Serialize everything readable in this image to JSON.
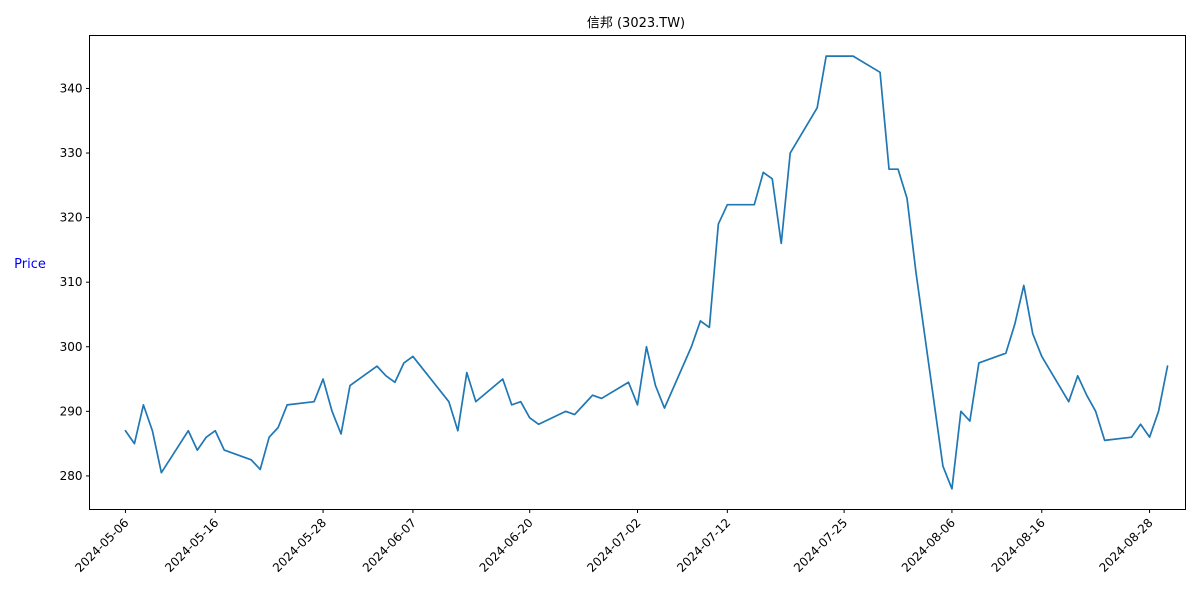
{
  "chart_data": {
    "type": "line",
    "title": "信邦 (3023.TW)",
    "xlabel": "",
    "ylabel": "Price",
    "ylabel_color": "#0000ff",
    "line_color": "#1f77b4",
    "grid": false,
    "legend": "none",
    "xlim": [
      "2024-05-02",
      "2024-09-01"
    ],
    "ylim": [
      274.8,
      348.2
    ],
    "x_ticks": [
      "2024-05-06",
      "2024-05-16",
      "2024-05-28",
      "2024-06-07",
      "2024-06-20",
      "2024-07-02",
      "2024-07-12",
      "2024-07-25",
      "2024-08-06",
      "2024-08-16",
      "2024-08-28"
    ],
    "y_ticks": [
      280,
      290,
      300,
      310,
      320,
      330,
      340
    ],
    "series": [
      {
        "x": [
          "2024-05-06",
          "2024-05-07",
          "2024-05-08",
          "2024-05-09",
          "2024-05-10",
          "2024-05-13",
          "2024-05-14",
          "2024-05-15",
          "2024-05-16",
          "2024-05-17",
          "2024-05-20",
          "2024-05-21",
          "2024-05-22",
          "2024-05-23",
          "2024-05-24",
          "2024-05-27",
          "2024-05-28",
          "2024-05-29",
          "2024-05-30",
          "2024-05-31",
          "2024-06-03",
          "2024-06-04",
          "2024-06-05",
          "2024-06-06",
          "2024-06-07",
          "2024-06-11",
          "2024-06-12",
          "2024-06-13",
          "2024-06-14",
          "2024-06-17",
          "2024-06-18",
          "2024-06-19",
          "2024-06-20",
          "2024-06-21",
          "2024-06-24",
          "2024-06-25",
          "2024-06-26",
          "2024-06-27",
          "2024-06-28",
          "2024-07-01",
          "2024-07-02",
          "2024-07-03",
          "2024-07-04",
          "2024-07-05",
          "2024-07-08",
          "2024-07-09",
          "2024-07-10",
          "2024-07-11",
          "2024-07-12",
          "2024-07-15",
          "2024-07-16",
          "2024-07-17",
          "2024-07-18",
          "2024-07-19",
          "2024-07-22",
          "2024-07-23",
          "2024-07-26",
          "2024-07-29",
          "2024-07-30",
          "2024-07-31",
          "2024-08-01",
          "2024-08-02",
          "2024-08-05",
          "2024-08-06",
          "2024-08-07",
          "2024-08-08",
          "2024-08-09",
          "2024-08-12",
          "2024-08-13",
          "2024-08-14",
          "2024-08-15",
          "2024-08-16",
          "2024-08-19",
          "2024-08-20",
          "2024-08-21",
          "2024-08-22",
          "2024-08-23",
          "2024-08-26",
          "2024-08-27",
          "2024-08-28",
          "2024-08-29",
          "2024-08-30"
        ],
        "y": [
          287,
          285,
          291,
          287,
          280.5,
          287,
          284,
          286,
          287,
          284,
          282.5,
          281,
          286,
          287.5,
          291,
          291.5,
          295,
          290,
          286.5,
          294,
          297,
          295.5,
          294.5,
          297.5,
          298.5,
          291.5,
          287,
          296,
          291.5,
          295,
          291,
          291.5,
          289,
          288,
          290,
          289.5,
          291,
          292.5,
          292,
          294.5,
          291,
          300,
          294,
          290.5,
          300,
          304,
          303,
          319,
          322,
          322,
          327,
          326,
          316,
          330,
          337,
          345,
          345,
          342.5,
          327.5,
          327.5,
          323,
          311.5,
          281.5,
          278,
          290,
          288.5,
          297.5,
          299,
          303.5,
          309.5,
          302,
          298.5,
          291.5,
          295.5,
          292.5,
          290,
          285.5,
          286,
          288,
          286,
          290,
          297
        ]
      }
    ]
  }
}
